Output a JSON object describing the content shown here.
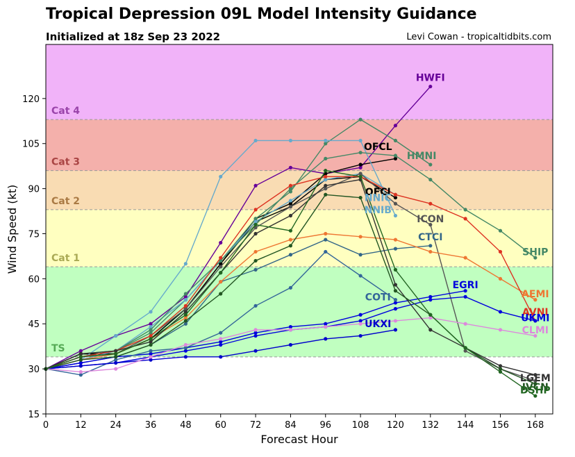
{
  "header": {
    "title": "Tropical Depression 09L Model Intensity Guidance",
    "subtitle": "Initialized at 18z Sep 23 2022",
    "credit": "Levi Cowan - tropicaltidbits.com"
  },
  "chart_data": {
    "type": "line",
    "xlabel": "Forecast Hour",
    "ylabel": "Wind Speed (kt)",
    "xlim": [
      0,
      174
    ],
    "ylim": [
      15,
      138
    ],
    "xticks": [
      0,
      12,
      24,
      36,
      48,
      60,
      72,
      84,
      96,
      108,
      120,
      132,
      144,
      156,
      168
    ],
    "yticks": [
      15,
      30,
      45,
      60,
      75,
      90,
      105,
      120
    ],
    "grid": false,
    "bands": [
      {
        "label": "",
        "min": 15,
        "max": 34,
        "color": "#ffffff"
      },
      {
        "label": "TS",
        "min": 34,
        "max": 64,
        "color": "#c0ffc0",
        "label_color": "#55aa55"
      },
      {
        "label": "Cat 1",
        "min": 64,
        "max": 83,
        "color": "#ffffc0",
        "label_color": "#aaaa55"
      },
      {
        "label": "Cat 2",
        "min": 83,
        "max": 96,
        "color": "#f9dcb3",
        "label_color": "#aa7a44"
      },
      {
        "label": "Cat 3",
        "min": 96,
        "max": 113,
        "color": "#f4b0ab",
        "label_color": "#aa4444"
      },
      {
        "label": "Cat 4",
        "min": 113,
        "max": 138,
        "color": "#f1b3f9",
        "label_color": "#9a44aa"
      }
    ],
    "series": [
      {
        "name": "HWFI",
        "color": "#660099",
        "x": [
          0,
          12,
          24,
          36,
          48,
          60,
          72,
          84,
          96,
          108,
          120,
          132
        ],
        "y": [
          30,
          36,
          41,
          45,
          54,
          72,
          91,
          97,
          95,
          97,
          111,
          124
        ]
      },
      {
        "name": "OFCL",
        "color": "#000000",
        "x": [
          0,
          12,
          24,
          36,
          48,
          60,
          72,
          84,
          96,
          108,
          120
        ],
        "y": [
          30,
          35,
          35,
          40,
          50,
          65,
          80,
          85,
          95,
          98,
          100
        ]
      },
      {
        "name": "HMNI",
        "color": "#448866",
        "x": [
          0,
          12,
          24,
          36,
          48,
          60,
          72,
          84,
          96,
          108,
          120,
          132
        ],
        "y": [
          30,
          35,
          36,
          42,
          53,
          66,
          80,
          89,
          105,
          113,
          106,
          98
        ]
      },
      {
        "name": "OFCI",
        "color": "#000000",
        "x": [
          0,
          12,
          24,
          36,
          48,
          60,
          72,
          84,
          96,
          108,
          120
        ],
        "y": [
          30,
          35,
          35,
          40,
          50,
          65,
          79,
          84,
          93,
          94,
          87
        ]
      },
      {
        "name": "NNIC",
        "color": "#66aacc",
        "x": [
          0,
          12,
          24,
          36,
          48,
          60,
          72,
          84,
          96,
          108,
          120
        ],
        "y": [
          30,
          33,
          36,
          44,
          53,
          66,
          79,
          86,
          93,
          95,
          88
        ]
      },
      {
        "name": "NNIB",
        "color": "#66aacc",
        "x": [
          0,
          12,
          24,
          36,
          48,
          60,
          72,
          84,
          96,
          108,
          120
        ],
        "y": [
          30,
          33,
          41,
          49,
          65,
          94,
          106,
          106,
          106,
          106,
          81
        ]
      },
      {
        "name": "ICON",
        "color": "#555555",
        "x": [
          0,
          12,
          24,
          36,
          48,
          60,
          72,
          84,
          96,
          108,
          120,
          132,
          144,
          156,
          168
        ],
        "y": [
          30,
          34,
          35,
          41,
          50,
          64,
          77,
          84,
          90,
          95,
          85,
          78,
          36,
          30,
          26
        ]
      },
      {
        "name": "CTCI",
        "color": "#336688",
        "x": [
          0,
          12,
          24,
          36,
          48,
          60,
          72,
          84,
          96,
          108,
          120,
          132
        ],
        "y": [
          30,
          32,
          34,
          38,
          45,
          59,
          63,
          68,
          73,
          68,
          70,
          71
        ]
      },
      {
        "name": "SHIP",
        "color": "#448866",
        "x": [
          0,
          12,
          24,
          36,
          48,
          60,
          72,
          84,
          96,
          108,
          120,
          132,
          144,
          156,
          168
        ],
        "y": [
          30,
          34,
          36,
          43,
          55,
          66,
          78,
          90,
          100,
          102,
          101,
          93,
          83,
          76,
          67
        ]
      },
      {
        "name": "AEMI",
        "color": "#ee7733",
        "x": [
          0,
          12,
          24,
          36,
          48,
          60,
          72,
          84,
          96,
          108,
          120,
          132,
          144,
          156,
          168
        ],
        "y": [
          30,
          33,
          35,
          40,
          47,
          59,
          69,
          73,
          75,
          74,
          73,
          69,
          67,
          60,
          53
        ]
      },
      {
        "name": "AVNI",
        "color": "#dd3322",
        "x": [
          0,
          12,
          24,
          36,
          48,
          60,
          72,
          84,
          96,
          108,
          120,
          132,
          144,
          156,
          168
        ],
        "y": [
          30,
          34,
          36,
          41,
          51,
          67,
          83,
          91,
          94,
          94,
          88,
          85,
          80,
          69,
          46
        ]
      },
      {
        "name": "EGRI",
        "color": "#0000dd",
        "x": [
          0,
          12,
          24,
          36,
          48,
          60,
          72,
          84,
          96,
          108,
          120,
          132,
          144
        ],
        "y": [
          30,
          32,
          34,
          35,
          37,
          39,
          42,
          44,
          45,
          48,
          52,
          54,
          56
        ]
      },
      {
        "name": "UKMI",
        "color": "#0000dd",
        "x": [
          0,
          12,
          24,
          36,
          48,
          60,
          72,
          84,
          96,
          108,
          120,
          132,
          144,
          156,
          168
        ],
        "y": [
          30,
          31,
          32,
          34,
          36,
          38,
          41,
          43,
          44,
          46,
          50,
          53,
          54,
          49,
          46
        ]
      },
      {
        "name": "COTI",
        "color": "#336699",
        "x": [
          0,
          12,
          24,
          36,
          48,
          60,
          72,
          84,
          96,
          108,
          120
        ],
        "y": [
          30,
          28,
          33,
          36,
          37,
          42,
          51,
          57,
          69,
          61,
          53
        ]
      },
      {
        "name": "UKXI",
        "color": "#0000cc",
        "x": [
          0,
          12,
          24,
          36,
          48,
          60,
          72,
          84,
          96,
          108,
          120
        ],
        "y": [
          30,
          31,
          32,
          33,
          34,
          34,
          36,
          38,
          40,
          41,
          43
        ]
      },
      {
        "name": "CLMI",
        "color": "#dd88dd",
        "x": [
          0,
          12,
          24,
          36,
          48,
          60,
          72,
          84,
          96,
          108,
          120,
          132,
          144,
          156,
          168
        ],
        "y": [
          30,
          29,
          30,
          34,
          38,
          40,
          43,
          43,
          44,
          45,
          46,
          47,
          45,
          43,
          41
        ]
      },
      {
        "name": "LGEM",
        "color": "#333333",
        "x": [
          0,
          12,
          24,
          36,
          48,
          60,
          72,
          84,
          96,
          108,
          120,
          132,
          144,
          156,
          168
        ],
        "y": [
          30,
          35,
          36,
          39,
          49,
          62,
          75,
          81,
          91,
          93,
          58,
          43,
          37,
          31,
          28
        ]
      },
      {
        "name": "IVCN",
        "color": "#225522",
        "x": [
          0,
          12,
          24,
          36,
          48,
          60,
          72,
          84,
          96,
          108,
          120,
          132,
          144,
          156,
          168
        ],
        "y": [
          30,
          33,
          34,
          38,
          46,
          55,
          66,
          71,
          88,
          87,
          56,
          48,
          37,
          30,
          25
        ]
      },
      {
        "name": "DSHP",
        "color": "#226622",
        "x": [
          0,
          12,
          24,
          36,
          48,
          60,
          72,
          84,
          96,
          108,
          120,
          132,
          144,
          156,
          168
        ],
        "y": [
          30,
          34,
          35,
          40,
          48,
          62,
          78,
          76,
          96,
          94,
          63,
          48,
          37,
          29,
          21
        ]
      }
    ],
    "labels": [
      {
        "text": "HWFI",
        "x": 132,
        "y": 127,
        "color": "#660099"
      },
      {
        "text": "OFCL",
        "x": 114,
        "y": 104,
        "color": "#000000"
      },
      {
        "text": "HMNI",
        "x": 129,
        "y": 101,
        "color": "#448866"
      },
      {
        "text": "OFCI",
        "x": 114,
        "y": 89,
        "color": "#000000"
      },
      {
        "text": "NNIC",
        "x": 114,
        "y": 87,
        "color": "#66aacc"
      },
      {
        "text": "NNIB",
        "x": 114,
        "y": 83,
        "color": "#66aacc"
      },
      {
        "text": "ICON",
        "x": 132,
        "y": 80,
        "color": "#555555"
      },
      {
        "text": "CTCI",
        "x": 132,
        "y": 74,
        "color": "#336688"
      },
      {
        "text": "SHIP",
        "x": 168,
        "y": 69,
        "color": "#448866"
      },
      {
        "text": "EGRI",
        "x": 144,
        "y": 58,
        "color": "#0000dd"
      },
      {
        "text": "AEMI",
        "x": 168,
        "y": 55,
        "color": "#ee7733"
      },
      {
        "text": "COTI",
        "x": 114,
        "y": 54,
        "color": "#336699"
      },
      {
        "text": "AVNI",
        "x": 168,
        "y": 49,
        "color": "#dd3322"
      },
      {
        "text": "UKMI",
        "x": 168,
        "y": 47,
        "color": "#0000dd"
      },
      {
        "text": "UKXI",
        "x": 114,
        "y": 45,
        "color": "#0000cc"
      },
      {
        "text": "CLMI",
        "x": 168,
        "y": 43,
        "color": "#dd88dd"
      },
      {
        "text": "LGEM",
        "x": 168,
        "y": 27,
        "color": "#333333"
      },
      {
        "text": "IVCN",
        "x": 168,
        "y": 24,
        "color": "#225522"
      },
      {
        "text": "DSHP",
        "x": 168,
        "y": 23,
        "color": "#226622"
      }
    ]
  }
}
